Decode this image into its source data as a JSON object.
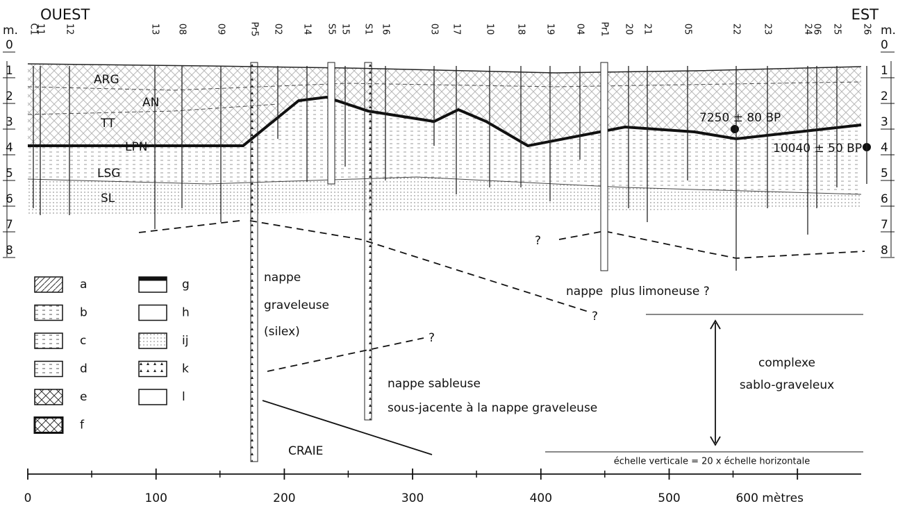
{
  "header": {
    "west": "OUEST",
    "east": "EST",
    "unit_left": "m.",
    "unit_right": "m."
  },
  "depth_scale": [
    0,
    1,
    2,
    3,
    4,
    5,
    6,
    7,
    8
  ],
  "boreholes": [
    "C1",
    "11",
    "12",
    "13",
    "08",
    "09",
    "Pr5",
    "02",
    "14",
    "S5",
    "15",
    "S1",
    "16",
    "03",
    "17",
    "10",
    "18",
    "19",
    "04",
    "Pr1",
    "20",
    "21",
    "05",
    "22",
    "23",
    "24",
    "06",
    "25",
    "26"
  ],
  "layers": [
    "ARG",
    "AN",
    "TT",
    "LPN",
    "LSG",
    "SL"
  ],
  "dates": [
    "7250 ± 80 BP",
    "10040 ± 50 BP"
  ],
  "legend": [
    "a",
    "b",
    "c",
    "d",
    "e",
    "f",
    "g",
    "h",
    "ij",
    "k",
    "l"
  ],
  "annotations": {
    "gravel": [
      "nappe",
      "graveleuse",
      "(silex)"
    ],
    "silty": "nappe  plus limoneuse ?",
    "question": "?",
    "sandy": [
      "nappe sableuse",
      "sous-jacente à la nappe graveleuse"
    ],
    "complex": [
      "complexe",
      "sablo-graveleux"
    ],
    "chalk": "CRAIE",
    "scale_note": "échelle verticale = 20 x échelle horizontale"
  },
  "horizontal_scale": [
    "0",
    "100",
    "200",
    "300",
    "400",
    "500",
    "600 mètres"
  ]
}
